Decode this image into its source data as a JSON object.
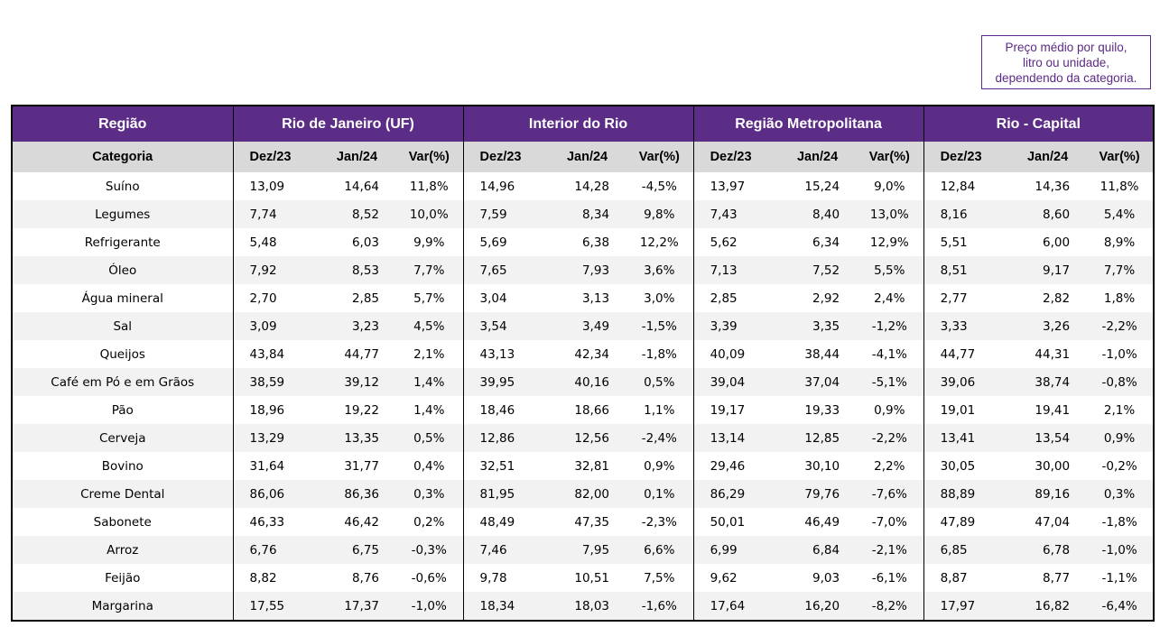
{
  "note_lines": [
    "Preço médio por quilo,",
    "litro ou unidade,",
    "dependendo da categoria."
  ],
  "header": {
    "regiao_label": "Região",
    "regions": [
      "Rio de Janeiro (UF)",
      "Interior do Rio",
      "Região Metropolitana",
      "Rio - Capital"
    ],
    "categoria_label": "Categoria",
    "col_dez": "Dez/23",
    "col_jan": "Jan/24",
    "col_var": "Var(%)"
  },
  "rows": [
    {
      "cat": "Suíno",
      "v": [
        "13,09",
        "14,64",
        "11,8%",
        "14,96",
        "14,28",
        "-4,5%",
        "13,97",
        "15,24",
        "9,0%",
        "12,84",
        "14,36",
        "11,8%"
      ]
    },
    {
      "cat": "Legumes",
      "v": [
        "7,74",
        "8,52",
        "10,0%",
        "7,59",
        "8,34",
        "9,8%",
        "7,43",
        "8,40",
        "13,0%",
        "8,16",
        "8,60",
        "5,4%"
      ]
    },
    {
      "cat": "Refrigerante",
      "v": [
        "5,48",
        "6,03",
        "9,9%",
        "5,69",
        "6,38",
        "12,2%",
        "5,62",
        "6,34",
        "12,9%",
        "5,51",
        "6,00",
        "8,9%"
      ]
    },
    {
      "cat": "Óleo",
      "v": [
        "7,92",
        "8,53",
        "7,7%",
        "7,65",
        "7,93",
        "3,6%",
        "7,13",
        "7,52",
        "5,5%",
        "8,51",
        "9,17",
        "7,7%"
      ]
    },
    {
      "cat": "Água mineral",
      "v": [
        "2,70",
        "2,85",
        "5,7%",
        "3,04",
        "3,13",
        "3,0%",
        "2,85",
        "2,92",
        "2,4%",
        "2,77",
        "2,82",
        "1,8%"
      ]
    },
    {
      "cat": "Sal",
      "v": [
        "3,09",
        "3,23",
        "4,5%",
        "3,54",
        "3,49",
        "-1,5%",
        "3,39",
        "3,35",
        "-1,2%",
        "3,33",
        "3,26",
        "-2,2%"
      ]
    },
    {
      "cat": "Queijos",
      "v": [
        "43,84",
        "44,77",
        "2,1%",
        "43,13",
        "42,34",
        "-1,8%",
        "40,09",
        "38,44",
        "-4,1%",
        "44,77",
        "44,31",
        "-1,0%"
      ]
    },
    {
      "cat": "Café em Pó e em Grãos",
      "v": [
        "38,59",
        "39,12",
        "1,4%",
        "39,95",
        "40,16",
        "0,5%",
        "39,04",
        "37,04",
        "-5,1%",
        "39,06",
        "38,74",
        "-0,8%"
      ]
    },
    {
      "cat": "Pão",
      "v": [
        "18,96",
        "19,22",
        "1,4%",
        "18,46",
        "18,66",
        "1,1%",
        "19,17",
        "19,33",
        "0,9%",
        "19,01",
        "19,41",
        "2,1%"
      ]
    },
    {
      "cat": "Cerveja",
      "v": [
        "13,29",
        "13,35",
        "0,5%",
        "12,86",
        "12,56",
        "-2,4%",
        "13,14",
        "12,85",
        "-2,2%",
        "13,41",
        "13,54",
        "0,9%"
      ]
    },
    {
      "cat": "Bovino",
      "v": [
        "31,64",
        "31,77",
        "0,4%",
        "32,51",
        "32,81",
        "0,9%",
        "29,46",
        "30,10",
        "2,2%",
        "30,05",
        "30,00",
        "-0,2%"
      ]
    },
    {
      "cat": "Creme Dental",
      "v": [
        "86,06",
        "86,36",
        "0,3%",
        "81,95",
        "82,00",
        "0,1%",
        "86,29",
        "79,76",
        "-7,6%",
        "88,89",
        "89,16",
        "0,3%"
      ]
    },
    {
      "cat": "Sabonete",
      "v": [
        "46,33",
        "46,42",
        "0,2%",
        "48,49",
        "47,35",
        "-2,3%",
        "50,01",
        "46,49",
        "-7,0%",
        "47,89",
        "47,04",
        "-1,8%"
      ]
    },
    {
      "cat": "Arroz",
      "v": [
        "6,76",
        "6,75",
        "-0,3%",
        "7,46",
        "7,95",
        "6,6%",
        "6,99",
        "6,84",
        "-2,1%",
        "6,85",
        "6,78",
        "-1,0%"
      ]
    },
    {
      "cat": "Feijão",
      "v": [
        "8,82",
        "8,76",
        "-0,6%",
        "9,78",
        "10,51",
        "7,5%",
        "9,62",
        "9,03",
        "-6,1%",
        "8,87",
        "8,77",
        "-1,1%"
      ]
    },
    {
      "cat": "Margarina",
      "v": [
        "17,55",
        "17,37",
        "-1,0%",
        "18,34",
        "18,03",
        "-1,6%",
        "17,64",
        "16,20",
        "-8,2%",
        "17,97",
        "16,82",
        "-6,4%"
      ]
    }
  ]
}
